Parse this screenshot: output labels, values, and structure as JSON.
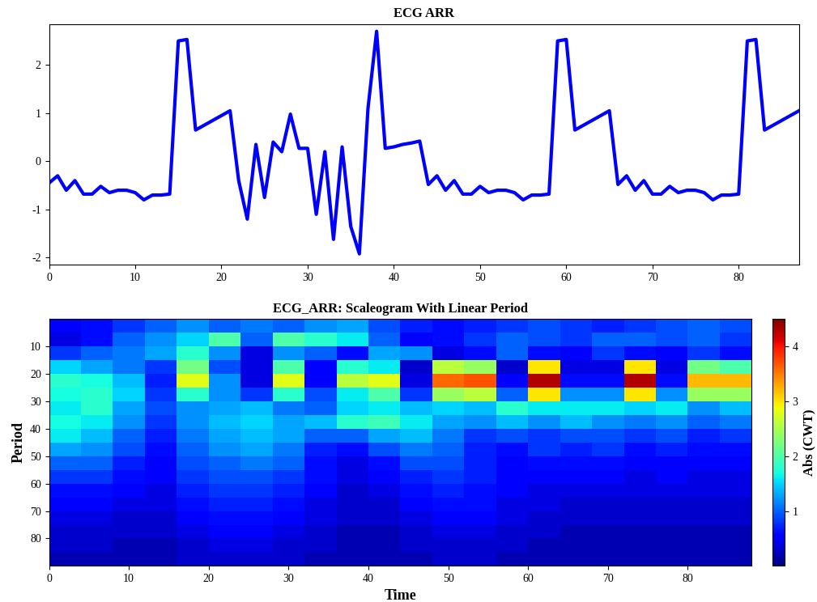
{
  "chart_data": [
    {
      "type": "line",
      "title": "ECG ARR",
      "color": "#0000ff",
      "x": [
        0,
        1,
        2,
        3,
        4,
        5,
        6,
        7,
        8,
        9,
        10,
        11,
        12,
        13,
        14,
        15,
        16,
        17,
        18,
        19,
        20,
        21,
        22,
        23,
        24,
        25,
        26,
        27,
        28,
        29,
        30,
        31,
        32,
        33,
        34,
        35,
        36,
        37,
        38,
        39,
        40,
        41,
        42,
        43,
        44,
        45,
        46,
        47,
        48,
        49,
        50,
        51,
        52,
        53,
        54,
        55,
        56,
        57,
        58,
        59,
        60,
        61,
        62,
        63,
        64,
        65,
        66,
        67,
        68,
        69,
        70,
        71,
        72,
        73,
        74,
        75,
        76,
        77,
        78,
        79,
        80,
        81,
        82,
        83,
        84,
        85,
        86,
        87
      ],
      "values": [
        -0.45,
        -0.3,
        -0.6,
        -0.4,
        -0.68,
        -0.68,
        -0.52,
        -0.65,
        -0.6,
        -0.6,
        -0.65,
        -0.8,
        -0.7,
        -0.7,
        -0.68,
        2.5,
        2.53,
        0.65,
        0.75,
        0.85,
        0.95,
        1.05,
        -0.4,
        -1.2,
        0.35,
        -0.75,
        0.4,
        0.2,
        0.98,
        0.27,
        0.27,
        -1.1,
        0.2,
        -1.62,
        0.3,
        -1.35,
        -1.92,
        1.1,
        2.7,
        0.27,
        0.3,
        0.35,
        0.38,
        0.42,
        -0.48,
        -0.3,
        -0.6,
        -0.4,
        -0.68,
        -0.68,
        -0.52,
        -0.65,
        -0.6,
        -0.6,
        -0.65,
        -0.8,
        -0.7,
        -0.7,
        -0.68,
        2.5,
        2.53,
        0.65,
        0.75,
        0.85,
        0.95,
        1.05,
        -0.48,
        -0.3,
        -0.6,
        -0.4,
        -0.68,
        -0.68,
        -0.52,
        -0.65,
        -0.6,
        -0.6,
        -0.65,
        -0.8,
        -0.7,
        -0.7,
        -0.68,
        2.5,
        2.53,
        0.65,
        0.75,
        0.85,
        0.95,
        1.05
      ],
      "xlim": [
        0,
        87
      ],
      "ylim": [
        -2.15,
        2.85
      ],
      "xticks": [
        0,
        10,
        20,
        30,
        40,
        50,
        60,
        70,
        80
      ],
      "yticks": [
        -2,
        -1,
        0,
        1,
        2
      ]
    },
    {
      "type": "heatmap",
      "title": "ECG_ARR: Scaleogram With Linear Period",
      "xlabel": "Time",
      "ylabel": "Period",
      "color": "jet",
      "x_edges": [
        0,
        4,
        8,
        12,
        16,
        20,
        24,
        28,
        32,
        36,
        40,
        44,
        48,
        52,
        56,
        60,
        64,
        68,
        72,
        76,
        80,
        84,
        88
      ],
      "y_edges": [
        0,
        5,
        10,
        15,
        20,
        25,
        30,
        35,
        40,
        45,
        50,
        55,
        60,
        65,
        70,
        75,
        80,
        85,
        90
      ],
      "cells": [
        [
          0.5,
          0.6,
          0.8,
          1.0,
          1.2,
          1.0,
          1.1,
          1.0,
          1.2,
          1.3,
          0.9,
          0.7,
          0.6,
          0.7,
          0.8,
          0.9,
          0.8,
          0.7,
          0.8,
          0.9,
          1.0,
          0.9
        ],
        [
          0.4,
          0.6,
          1.0,
          1.2,
          1.5,
          2.0,
          1.0,
          2.0,
          1.8,
          1.6,
          1.0,
          0.5,
          0.6,
          0.8,
          1.0,
          0.9,
          0.8,
          1.0,
          1.0,
          0.9,
          1.0,
          0.8
        ],
        [
          0.8,
          1.0,
          1.1,
          1.3,
          1.8,
          1.2,
          0.4,
          1.2,
          1.0,
          0.6,
          1.3,
          1.2,
          0.4,
          0.6,
          1.0,
          0.6,
          0.5,
          0.8,
          0.6,
          0.5,
          0.8,
          0.6
        ],
        [
          1.5,
          1.3,
          1.1,
          0.8,
          2.2,
          0.9,
          0.4,
          2.0,
          0.5,
          1.8,
          1.6,
          0.3,
          2.6,
          2.4,
          0.3,
          3.0,
          0.4,
          0.4,
          3.0,
          0.4,
          2.2,
          2.0
        ],
        [
          1.8,
          1.7,
          1.4,
          0.7,
          2.8,
          1.2,
          0.4,
          2.8,
          0.5,
          2.6,
          2.8,
          0.4,
          3.6,
          3.7,
          0.5,
          4.3,
          0.6,
          0.6,
          4.3,
          0.6,
          3.2,
          3.2
        ],
        [
          1.7,
          1.8,
          1.5,
          0.8,
          1.8,
          1.2,
          0.8,
          1.8,
          0.9,
          1.6,
          2.0,
          0.8,
          2.4,
          2.6,
          1.0,
          3.0,
          1.2,
          1.2,
          3.0,
          1.2,
          2.4,
          2.4
        ],
        [
          1.6,
          1.8,
          1.3,
          0.9,
          1.2,
          1.3,
          1.4,
          1.1,
          1.0,
          1.5,
          1.6,
          1.4,
          1.5,
          1.4,
          1.8,
          1.6,
          1.6,
          1.6,
          1.5,
          1.6,
          1.2,
          1.4
        ],
        [
          1.7,
          1.6,
          1.2,
          0.8,
          1.2,
          1.4,
          1.5,
          1.3,
          1.4,
          1.8,
          1.9,
          1.6,
          1.3,
          1.2,
          1.4,
          1.2,
          1.4,
          1.2,
          1.1,
          1.2,
          1.0,
          1.1
        ],
        [
          1.6,
          1.4,
          1.0,
          0.7,
          1.1,
          1.3,
          1.4,
          1.3,
          1.0,
          1.0,
          1.3,
          1.4,
          1.1,
          0.8,
          0.9,
          0.8,
          0.9,
          0.9,
          0.8,
          0.9,
          0.7,
          0.8
        ],
        [
          1.3,
          1.2,
          0.9,
          0.6,
          1.0,
          1.2,
          1.3,
          1.1,
          0.7,
          0.6,
          0.9,
          1.1,
          1.0,
          0.7,
          0.6,
          0.8,
          0.7,
          0.8,
          0.6,
          0.7,
          0.6,
          0.6
        ],
        [
          1.0,
          1.0,
          0.7,
          0.5,
          0.9,
          1.0,
          1.1,
          1.0,
          0.6,
          0.4,
          0.6,
          0.9,
          0.9,
          0.7,
          0.5,
          0.6,
          0.6,
          0.6,
          0.5,
          0.5,
          0.5,
          0.5
        ],
        [
          0.8,
          0.8,
          0.6,
          0.5,
          0.8,
          0.9,
          0.9,
          0.8,
          0.6,
          0.4,
          0.5,
          0.7,
          0.8,
          0.7,
          0.5,
          0.5,
          0.5,
          0.5,
          0.4,
          0.5,
          0.4,
          0.4
        ],
        [
          0.6,
          0.6,
          0.5,
          0.4,
          0.7,
          0.8,
          0.8,
          0.7,
          0.5,
          0.3,
          0.4,
          0.6,
          0.7,
          0.6,
          0.5,
          0.4,
          0.4,
          0.4,
          0.4,
          0.4,
          0.4,
          0.4
        ],
        [
          0.5,
          0.5,
          0.4,
          0.4,
          0.6,
          0.7,
          0.7,
          0.6,
          0.4,
          0.3,
          0.3,
          0.5,
          0.6,
          0.6,
          0.4,
          0.4,
          0.3,
          0.3,
          0.3,
          0.3,
          0.3,
          0.3
        ],
        [
          0.4,
          0.4,
          0.3,
          0.3,
          0.5,
          0.6,
          0.6,
          0.5,
          0.4,
          0.3,
          0.3,
          0.4,
          0.5,
          0.5,
          0.4,
          0.3,
          0.3,
          0.3,
          0.3,
          0.3,
          0.3,
          0.3
        ],
        [
          0.3,
          0.3,
          0.3,
          0.3,
          0.4,
          0.5,
          0.5,
          0.4,
          0.3,
          0.2,
          0.2,
          0.3,
          0.4,
          0.4,
          0.3,
          0.3,
          0.2,
          0.2,
          0.2,
          0.2,
          0.2,
          0.2
        ],
        [
          0.3,
          0.3,
          0.2,
          0.2,
          0.3,
          0.4,
          0.4,
          0.3,
          0.3,
          0.2,
          0.2,
          0.3,
          0.3,
          0.3,
          0.3,
          0.2,
          0.2,
          0.2,
          0.2,
          0.2,
          0.2,
          0.2
        ],
        [
          0.2,
          0.2,
          0.2,
          0.2,
          0.3,
          0.3,
          0.3,
          0.3,
          0.2,
          0.2,
          0.2,
          0.2,
          0.3,
          0.3,
          0.2,
          0.2,
          0.2,
          0.2,
          0.2,
          0.2,
          0.2,
          0.2
        ]
      ],
      "xlim": [
        0,
        88
      ],
      "ylim": [
        90,
        0
      ],
      "xticks": [
        0,
        10,
        20,
        30,
        40,
        50,
        60,
        70,
        80
      ],
      "yticks": [
        10,
        20,
        30,
        40,
        50,
        60,
        70,
        80
      ],
      "colorbar": {
        "label": "Abs (CWT)",
        "range": [
          0,
          4.5
        ],
        "ticks": [
          1,
          2,
          3,
          4
        ]
      }
    }
  ]
}
